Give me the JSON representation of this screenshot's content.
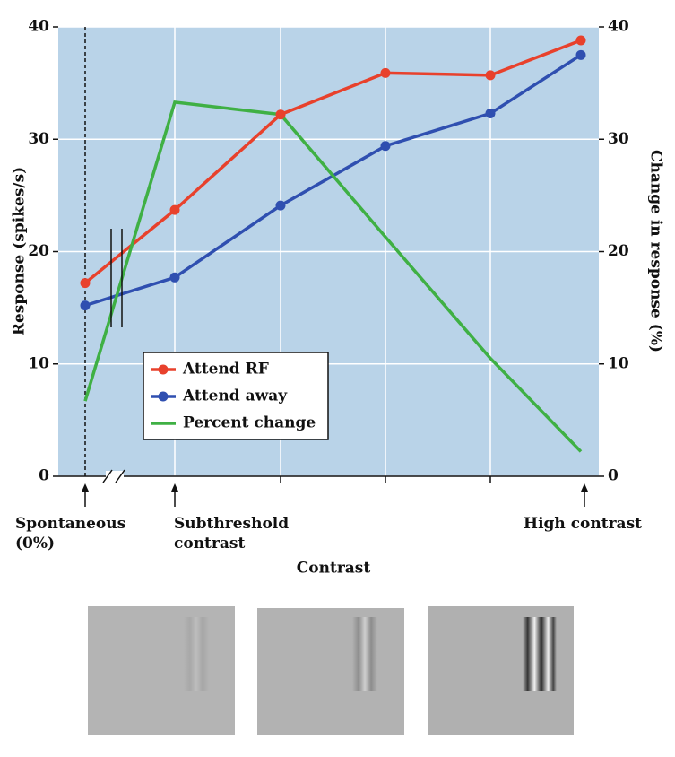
{
  "chart_data": {
    "type": "line",
    "categories": [
      "Spontaneous\n(0%)",
      "Subthreshold\ncontrast",
      null,
      null,
      null,
      "High contrast"
    ],
    "x_label": "Contrast",
    "y_label": "Response (spikes/s)",
    "y2_label": "Change in response (%)",
    "ylim": [
      0,
      40
    ],
    "yticks": [
      0,
      10,
      20,
      30,
      40
    ],
    "y2lim": [
      0,
      40
    ],
    "y2ticks": [
      0,
      10,
      20,
      30,
      40
    ],
    "grid": true,
    "legend": "lower left",
    "series": [
      {
        "name": "Attend RF",
        "color": "#e8412c",
        "values": [
          17.2,
          23.7,
          32.2,
          35.9,
          35.7,
          38.8
        ]
      },
      {
        "name": "Attend away",
        "color": "#2f4fb0",
        "values": [
          15.2,
          17.7,
          24.1,
          29.4,
          32.3,
          37.5
        ]
      },
      {
        "name": "Percent change",
        "color": "#3fb044",
        "axis": "y2",
        "values": [
          6.7,
          33.3,
          32.2,
          21.3,
          10.5,
          2.2
        ]
      }
    ]
  }
}
